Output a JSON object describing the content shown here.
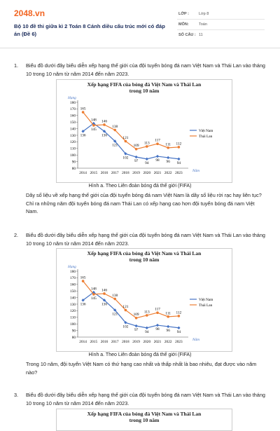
{
  "header": {
    "logo": "2048.vn",
    "title": "Bộ 10 đề thi giữa kì 2 Toán 8 Cánh diều cấu trúc mới có đáp án (Đề 6)",
    "fields": [
      {
        "label": "LỚP :",
        "value": "Lớp 8"
      },
      {
        "label": "MÔN:",
        "value": "Toán"
      },
      {
        "label": "SỐ CÂU :",
        "value": "11"
      }
    ]
  },
  "questions": [
    {
      "number": "1.",
      "intro": "Biểu đồ dưới đây biểu diễn xếp hạng thế giới của đội tuyển bóng đá nam Việt Nam và Thái Lan vào tháng 10 trong 10 năm từ năm 2014 đến năm 2023.",
      "chart": {
        "type": "line",
        "title": "Xếp hạng FIFA của bóng đá Việt Nam và Thái Lan trong 10 năm",
        "y_label": "Hạng",
        "x_label": "Năm",
        "categories": [
          "2014",
          "2015",
          "2016",
          "2017",
          "2018",
          "2019",
          "2020",
          "2021",
          "2022",
          "2023"
        ],
        "series": [
          {
            "name": "Việt Nam",
            "color": "#4472c4",
            "values": [
              136,
              148,
              136,
              121,
              102,
              97,
              94,
              98,
              96,
              94
            ]
          },
          {
            "name": "Thái Lan",
            "color": "#ed7d31",
            "values": [
              165,
              145,
              146,
              138,
              121,
              109,
              113,
              117,
              111,
              112
            ]
          }
        ],
        "ylim": [
          80,
          180
        ],
        "yticks": [
          80,
          90,
          100,
          110,
          120,
          130,
          140,
          150,
          160,
          170,
          180
        ],
        "legend": "right"
      },
      "caption": "Hình a. Theo Liên đoàn bóng đá thế giới (FIFA)",
      "items": [
        "Dãy số liệu về xếp hạng thế giới của đội tuyển bóng đá nam Việt Nam là dãy số liệu rời rạc hay liên tục?",
        "Chỉ ra những năm đội tuyển bóng đá nam Thái Lan có xếp hạng cao hơn đội tuyển bóng đá nam Việt Nam."
      ]
    },
    {
      "number": "2.",
      "intro": "Biểu đồ dưới đây biểu diễn xếp hạng thế giới của đội tuyển bóng đá nam Việt Nam và Thái Lan vào tháng 10 trong 10 năm từ năm 2014 đến năm 2023.",
      "chart": {
        "type": "line",
        "title": "Xếp hạng FIFA của bóng đá Việt Nam và Thái Lan trong 10 năm",
        "y_label": "Hạng",
        "x_label": "Năm",
        "categories": [
          "2014",
          "2015",
          "2016",
          "2017",
          "2018",
          "2019",
          "2020",
          "2021",
          "2022",
          "2023"
        ],
        "series": [
          {
            "name": "Việt Nam",
            "color": "#4472c4",
            "values": [
              136,
              148,
              136,
              121,
              102,
              97,
              94,
              98,
              96,
              94
            ]
          },
          {
            "name": "Thái Lan",
            "color": "#ed7d31",
            "values": [
              165,
              145,
              146,
              138,
              121,
              109,
              113,
              117,
              111,
              112
            ]
          }
        ],
        "ylim": [
          80,
          180
        ],
        "yticks": [
          80,
          90,
          100,
          110,
          120,
          130,
          140,
          150,
          160,
          170,
          180
        ],
        "legend": "right"
      },
      "caption": "Hình a. Theo Liên đoàn bóng đá thế giới (FIFA)",
      "items": [
        "Trong 10 năm, đội tuyển Việt Nam có thứ hạng cao nhất và thấp nhất là bao nhiêu, đạt được vào năm nào?"
      ]
    },
    {
      "number": "3.",
      "intro": "Biểu đồ dưới đây biểu diễn xếp hạng thế giới của đội tuyển bóng đá nam Việt Nam và Thái Lan vào tháng 10 trong 10 năm từ năm 2014 đến năm 2023.",
      "chart": {
        "type": "line",
        "title": "Xếp hạng FIFA của bóng đá Việt Nam và Thái Lan trong 10 năm"
      }
    }
  ]
}
